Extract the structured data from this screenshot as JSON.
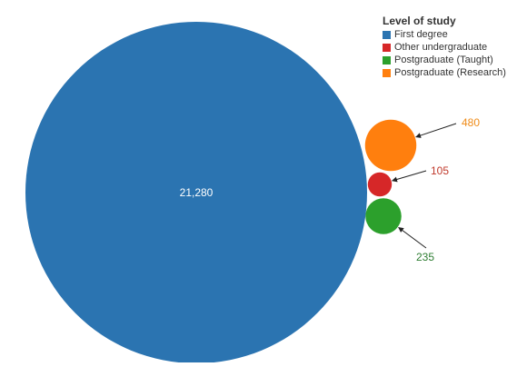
{
  "chart_data": {
    "type": "bubble",
    "legend": {
      "title": "Level of study",
      "placement": "top-right"
    },
    "series": [
      {
        "name": "First degree",
        "value": 21280,
        "label": "21,280",
        "color": "#2b74b1",
        "label_color": "#ffffff"
      },
      {
        "name": "Other undergraduate",
        "value": 105,
        "label": "105",
        "color": "#d62728",
        "label_color": "#c0392b"
      },
      {
        "name": "Postgraduate (Taught)",
        "value": 235,
        "label": "235",
        "color": "#2ca02c",
        "label_color": "#2e7d32"
      },
      {
        "name": "Postgraduate (Research)",
        "value": 480,
        "label": "480",
        "color": "#ff7f0e",
        "label_color": "#ef8c1a"
      }
    ]
  }
}
